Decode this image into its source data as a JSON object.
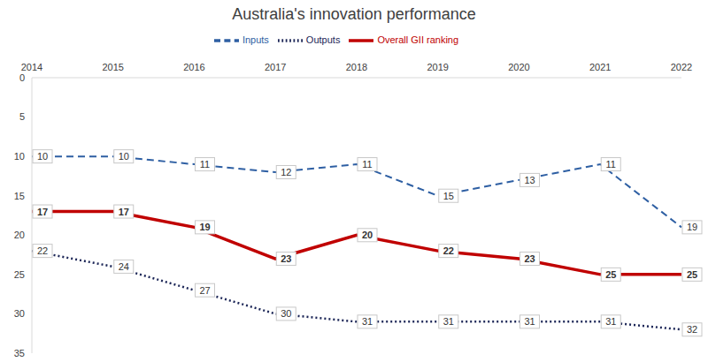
{
  "chart_data": {
    "type": "line",
    "title": "Australia's innovation performance",
    "categories": [
      "2014",
      "2015",
      "2016",
      "2017",
      "2018",
      "2019",
      "2020",
      "2021",
      "2022"
    ],
    "series": [
      {
        "name": "Inputs",
        "color": "#2e5fa3",
        "line_style": "dashed",
        "marker": "none",
        "values": [
          10,
          10,
          11,
          12,
          11,
          15,
          13,
          11,
          19
        ]
      },
      {
        "name": "Outputs",
        "color": "#1c2657",
        "line_style": "dotted",
        "marker": "none",
        "values": [
          22,
          24,
          27,
          30,
          31,
          31,
          31,
          31,
          32
        ]
      },
      {
        "name": "Overall GII ranking",
        "color": "#c00000",
        "line_style": "solid",
        "marker": "none",
        "values": [
          17,
          17,
          19,
          23,
          20,
          22,
          23,
          25,
          25
        ]
      }
    ],
    "ylim": [
      0,
      35
    ],
    "yticks": [
      0,
      5,
      10,
      15,
      20,
      25,
      30,
      35
    ],
    "grid": false,
    "legend": "top",
    "data_labels": true
  }
}
